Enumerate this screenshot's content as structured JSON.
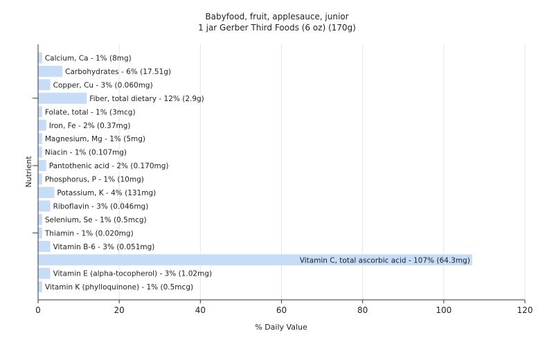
{
  "chart_data": {
    "type": "bar",
    "orientation": "horizontal",
    "title": "Babyfood, fruit, applesauce, junior",
    "subtitle": "1 jar Gerber Third Foods (6 oz) (170g)",
    "xlabel": "% Daily Value",
    "ylabel": "Nutrient",
    "xlim": [
      0,
      120
    ],
    "xticks": [
      "0",
      "20",
      "40",
      "60",
      "80",
      "100",
      "120"
    ],
    "grid": true,
    "legend": "none",
    "bar_color": "#c6dcf7",
    "categories": [
      "Calcium, Ca - 1% (8mg)",
      "Carbohydrates - 6% (17.51g)",
      "Copper, Cu - 3% (0.060mg)",
      "Fiber, total dietary - 12% (2.9g)",
      "Folate, total - 1% (3mcg)",
      "Iron, Fe - 2% (0.37mg)",
      "Magnesium, Mg - 1% (5mg)",
      "Niacin - 1% (0.107mg)",
      "Pantothenic acid - 2% (0.170mg)",
      "Phosphorus, P - 1% (10mg)",
      "Potassium, K - 4% (131mg)",
      "Riboflavin - 3% (0.046mg)",
      "Selenium, Se - 1% (0.5mcg)",
      "Thiamin - 1% (0.020mg)",
      "Vitamin B-6 - 3% (0.051mg)",
      "Vitamin C, total ascorbic acid - 107% (64.3mg)",
      "Vitamin E (alpha-tocopherol) - 3% (1.02mg)",
      "Vitamin K (phylloquinone) - 1% (0.5mcg)"
    ],
    "values": [
      1,
      6,
      3,
      12,
      1,
      2,
      1,
      1,
      2,
      1,
      4,
      3,
      1,
      1,
      3,
      107,
      3,
      1
    ]
  }
}
